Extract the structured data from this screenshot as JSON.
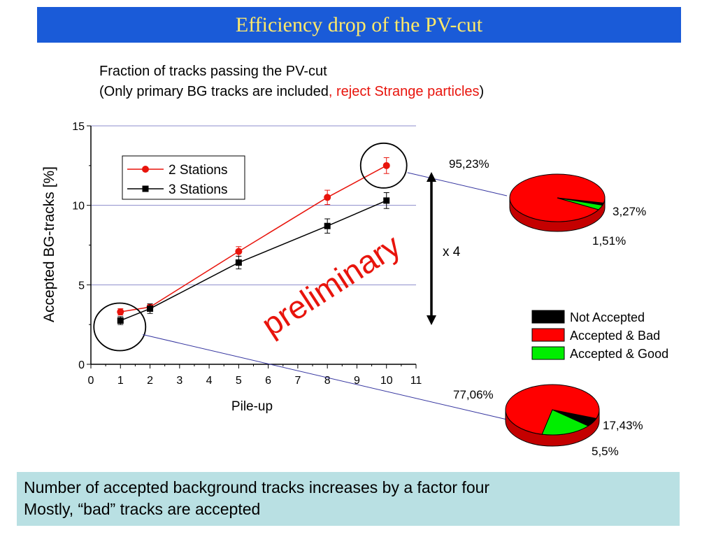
{
  "slide": {
    "title": "Efficiency drop of the PV-cut",
    "subtitle_line1": "Fraction of tracks passing the PV-cut",
    "subtitle_line2_prefix": "(Only primary BG tracks are included",
    "subtitle_line2_red": ", reject Strange particles",
    "subtitle_line2_suffix": ")",
    "watermark": "preliminary",
    "factor_label": "x 4",
    "bottom_line1": "Number of accepted background tracks increases by a factor four",
    "bottom_line2": "Mostly, “bad” tracks are accepted"
  },
  "colors": {
    "title_bg": "#1a5bd8",
    "title_text": "#ffe96a",
    "series_red": "#e8140c",
    "series_black": "#000000",
    "pie_not_accepted": "#000000",
    "pie_bad": "#ff0000",
    "pie_good": "#00ee00",
    "bottom_box": "#b9e0e3",
    "gridline": "#8c8ccc",
    "watermark": "#e8140c"
  },
  "chart_data": [
    {
      "type": "line",
      "xlabel": "Pile-up",
      "ylabel": "Accepted BG-tracks [%]",
      "xlim": [
        0,
        11
      ],
      "ylim": [
        0,
        15
      ],
      "x_ticks": [
        0,
        1,
        2,
        3,
        4,
        5,
        6,
        7,
        8,
        9,
        10,
        11
      ],
      "y_ticks": [
        0,
        5,
        10,
        15
      ],
      "grid": "horizontal",
      "legend": "top-left",
      "series": [
        {
          "name": "2 Stations",
          "color": "#e8140c",
          "marker": "circle",
          "x": [
            1,
            2,
            5,
            8,
            10
          ],
          "y": [
            3.3,
            3.6,
            7.1,
            10.5,
            12.5
          ],
          "err": [
            0.2,
            0.2,
            0.3,
            0.45,
            0.5
          ]
        },
        {
          "name": "3 Stations",
          "color": "#000000",
          "marker": "square",
          "x": [
            1,
            2,
            5,
            8,
            10
          ],
          "y": [
            2.75,
            3.5,
            6.4,
            8.7,
            10.3
          ],
          "err": [
            0.25,
            0.3,
            0.4,
            0.45,
            0.5
          ]
        }
      ]
    },
    {
      "type": "pie",
      "legend": "right",
      "legend_labels": [
        "Not Accepted",
        "Accepted & Bad",
        "Accepted & Good"
      ],
      "slices": [
        {
          "label": "Not Accepted",
          "value": 1.51,
          "text": "1,51%"
        },
        {
          "label": "Accepted & Bad",
          "value": 95.23,
          "text": "95,23%"
        },
        {
          "label": "Accepted & Good",
          "value": 3.27,
          "text": "3,27%"
        }
      ]
    },
    {
      "type": "pie",
      "slices": [
        {
          "label": "Not Accepted",
          "value": 5.5,
          "text": "5,5%"
        },
        {
          "label": "Accepted & Bad",
          "value": 77.06,
          "text": "77,06%"
        },
        {
          "label": "Accepted & Good",
          "value": 17.43,
          "text": "17,43%"
        }
      ]
    }
  ]
}
